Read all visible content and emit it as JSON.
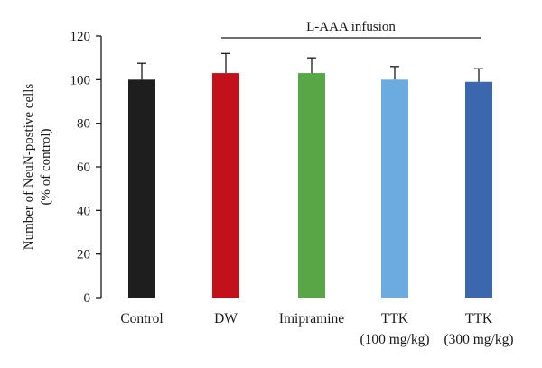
{
  "chart_data": {
    "type": "bar",
    "title": "",
    "xlabel": "",
    "ylabel_line1": "Number of NeuN-postive cells",
    "ylabel_line2": "(% of control)",
    "ylim": [
      0,
      120
    ],
    "yticks": [
      0,
      20,
      40,
      60,
      80,
      100,
      120
    ],
    "grid": false,
    "categories": [
      {
        "line1": "Control",
        "line2": ""
      },
      {
        "line1": "DW",
        "line2": ""
      },
      {
        "line1": "Imipramine",
        "line2": ""
      },
      {
        "line1": "TTK",
        "line2": "(100 mg/kg)"
      },
      {
        "line1": "TTK",
        "line2": "(300 mg/kg)"
      }
    ],
    "values": [
      100,
      103,
      103,
      100,
      99
    ],
    "error_upper": [
      7.5,
      9,
      7,
      6,
      6
    ],
    "colors": [
      "#1e1e1e",
      "#c3111c",
      "#57a746",
      "#6cabdf",
      "#3a67ad"
    ],
    "annotation": {
      "label": "L-AAA infusion",
      "span_from_category": 1,
      "span_to_category": 4
    }
  }
}
